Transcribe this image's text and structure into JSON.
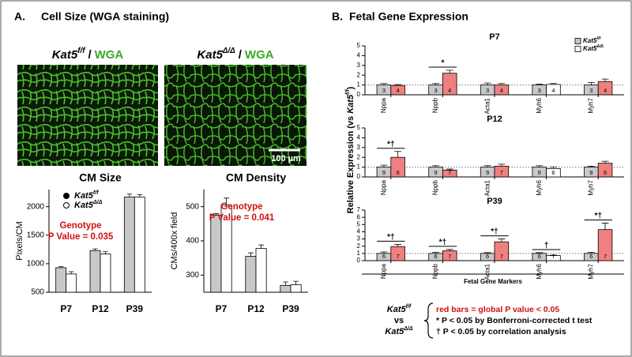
{
  "panel_a": {
    "label": "A.",
    "title": "Cell Size (WGA staining)",
    "image_labels": [
      {
        "base": "Kat5",
        "sup": "f/f",
        "sep": "/",
        "stain": "WGA"
      },
      {
        "base": "Kat5",
        "sup": "Δ/Δ",
        "sep": "/",
        "stain": "WGA"
      }
    ],
    "scale_bar": "100 µm"
  },
  "panel_b": {
    "label": "B.",
    "title": "Fetal Gene Expression",
    "y_label": [
      "Relative Expression (vs ",
      "Kat5",
      "f/f",
      ")"
    ],
    "x_label": "Fetal Gene Markers",
    "key": {
      "group_a": {
        "base": "Kat5",
        "sup": "f/f"
      },
      "vs": "vs",
      "group_b": {
        "base": "Kat5",
        "sup": "Δ/Δ"
      },
      "lines": [
        "red bars = global P value < 0.05",
        "*  P < 0.05 by Bonferroni-corrected t test",
        "†  P < 0.05 by correlation analysis"
      ]
    }
  },
  "chart_data": [
    {
      "type": "bar",
      "title": "CM Size",
      "y_label": "Pixels/CM",
      "categories": [
        "P7",
        "P12",
        "P39"
      ],
      "ylim": [
        500,
        2300
      ],
      "yticks": [
        500,
        1000,
        1500,
        2000
      ],
      "legend": "top-left",
      "annotation": [
        "Genotype",
        "P Value = 0.035"
      ],
      "series": [
        {
          "name": "Kat5",
          "name_sup": "f/f",
          "color": "#c8c8c8",
          "values": [
            930,
            1230,
            2170
          ],
          "errors": [
            20,
            30,
            50
          ]
        },
        {
          "name": "Kat5",
          "name_sup": "Δ/Δ",
          "color": "#ffffff",
          "values": [
            820,
            1170,
            2170
          ],
          "errors": [
            40,
            40,
            40
          ]
        }
      ]
    },
    {
      "type": "bar",
      "title": "CM Density",
      "y_label": "CMs/400x field",
      "categories": [
        "P7",
        "P12",
        "P39"
      ],
      "ylim": [
        250,
        550
      ],
      "yticks": [
        300,
        400,
        500
      ],
      "annotation": [
        "Genotype",
        "P Value = 0.041"
      ],
      "series": [
        {
          "name": "Kat5",
          "name_sup": "f/f",
          "color": "#c8c8c8",
          "values": [
            475,
            355,
            270
          ],
          "errors": [
            5,
            10,
            10
          ]
        },
        {
          "name": "Kat5",
          "name_sup": "Δ/Δ",
          "color": "#ffffff",
          "values": [
            505,
            378,
            272
          ],
          "errors": [
            20,
            10,
            10
          ]
        }
      ]
    },
    {
      "type": "bar",
      "title": "P7",
      "categories": [
        "Nppa",
        "Nppb",
        "Acta1",
        "Myh6",
        "Myh7"
      ],
      "ylim": [
        0,
        5
      ],
      "yticks": [
        0,
        1,
        2,
        3,
        4,
        5
      ],
      "reference_line": 1,
      "legend": "top-right",
      "significance": [
        null,
        "*",
        null,
        null,
        null
      ],
      "series": [
        {
          "name": "Kat5",
          "name_sup": "f/f",
          "color": "#c8c8c8",
          "values": [
            1,
            1,
            1,
            1,
            1
          ],
          "errors": [
            0.15,
            0.15,
            0.2,
            0.1,
            0.25
          ],
          "n": [
            3,
            3,
            3,
            3,
            3
          ]
        },
        {
          "name": "Kat5",
          "name_sup": "Δ/Δ",
          "color": "#ffffff",
          "colors": [
            "#f08080",
            "#f08080",
            "#f08080",
            "#ffffff",
            "#f08080"
          ],
          "values": [
            0.95,
            2.2,
            1.0,
            1.05,
            1.35
          ],
          "errors": [
            0.1,
            0.3,
            0.15,
            0.1,
            0.25
          ],
          "n": [
            4,
            4,
            4,
            4,
            4
          ]
        }
      ]
    },
    {
      "type": "bar",
      "title": "P12",
      "categories": [
        "Nppa",
        "Nppb",
        "Acta1",
        "Myh6",
        "Myh7"
      ],
      "ylim": [
        0,
        5
      ],
      "yticks": [
        0,
        1,
        2,
        3,
        4,
        5
      ],
      "reference_line": 1,
      "significance": [
        "*†",
        null,
        null,
        null,
        null
      ],
      "series": [
        {
          "name": "Kat5",
          "name_sup": "f/f",
          "color": "#c8c8c8",
          "values": [
            1,
            1,
            1,
            1,
            1
          ],
          "errors": [
            0.2,
            0.15,
            0.15,
            0.15,
            0.1
          ],
          "n": [
            9,
            9,
            9,
            9,
            9
          ]
        },
        {
          "name": "Kat5",
          "name_sup": "Δ/Δ",
          "color": "#ffffff",
          "colors": [
            "#f08080",
            "#f08080",
            "#f08080",
            "#ffffff",
            "#f08080"
          ],
          "values": [
            2.0,
            0.7,
            1.1,
            0.85,
            1.4
          ],
          "errors": [
            0.6,
            0.1,
            0.2,
            0.15,
            0.2
          ],
          "n": [
            6,
            7,
            7,
            6,
            6
          ]
        }
      ]
    },
    {
      "type": "bar",
      "title": "P39",
      "categories": [
        "Nppa",
        "Nppb",
        "Acta1",
        "Myh6",
        "Myh7"
      ],
      "ylim": [
        0,
        7
      ],
      "yticks": [
        0,
        1,
        2,
        3,
        4,
        5,
        6,
        7
      ],
      "reference_line": 1,
      "significance": [
        "*†",
        "*†",
        "*†",
        "†",
        "*†"
      ],
      "series": [
        {
          "name": "Kat5",
          "name_sup": "f/f",
          "color": "#c8c8c8",
          "values": [
            1,
            1,
            1,
            1,
            1
          ],
          "errors": [
            0.2,
            0.15,
            0.1,
            0.1,
            0.15
          ],
          "n": [
            6,
            6,
            6,
            6,
            6
          ]
        },
        {
          "name": "Kat5",
          "name_sup": "Δ/Δ",
          "color": "#ffffff",
          "colors": [
            "#f08080",
            "#f08080",
            "#f08080",
            "#ffffff",
            "#f08080"
          ],
          "values": [
            1.95,
            1.35,
            2.6,
            0.7,
            4.3
          ],
          "errors": [
            0.3,
            0.2,
            0.4,
            0.05,
            0.9
          ],
          "n": [
            7,
            7,
            7,
            7,
            7
          ]
        }
      ]
    }
  ]
}
